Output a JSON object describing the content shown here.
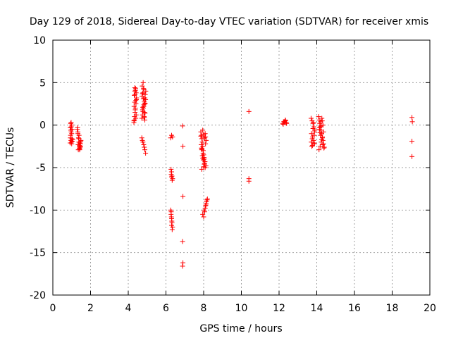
{
  "chart_data": {
    "type": "scatter",
    "title": "Day 129 of 2018, Sidereal Day-to-day VTEC variation (SDTVAR) for receiver xmis",
    "xlabel": "GPS time / hours",
    "ylabel": "SDTVAR / TECUs",
    "xlim": [
      0,
      20
    ],
    "ylim": [
      -20,
      10
    ],
    "xticks": [
      0,
      2,
      4,
      6,
      8,
      10,
      12,
      14,
      16,
      18,
      20
    ],
    "yticks": [
      -20,
      -15,
      -10,
      -5,
      0,
      5,
      10
    ],
    "grid": true,
    "marker": "+",
    "color": "#ff0000",
    "series": [
      {
        "name": "SDTVAR",
        "x": [
          0.92,
          0.95,
          0.97,
          1.0,
          1.02,
          0.93,
          0.96,
          0.99,
          1.01,
          0.94,
          0.98,
          1.03,
          0.92,
          0.97,
          1.0,
          1.05,
          0.95,
          1.0,
          1.3,
          1.33,
          1.36,
          1.38,
          1.41,
          1.43,
          1.46,
          1.49,
          1.31,
          1.35,
          1.39,
          1.42,
          1.45,
          1.48,
          1.34,
          1.4,
          1.44,
          1.38,
          1.47,
          1.33,
          1.42,
          4.3,
          4.33,
          4.36,
          4.38,
          4.41,
          4.43,
          4.32,
          4.35,
          4.39,
          4.42,
          4.31,
          4.37,
          4.4,
          4.44,
          4.3,
          4.34,
          4.38,
          4.42,
          4.33,
          4.36,
          4.4,
          4.35,
          4.72,
          4.75,
          4.78,
          4.8,
          4.83,
          4.85,
          4.88,
          4.9,
          4.93,
          4.74,
          4.79,
          4.84,
          4.89,
          4.76,
          4.82,
          4.87,
          4.92,
          4.73,
          4.78,
          4.83,
          4.88,
          4.77,
          4.86,
          4.8,
          4.85,
          4.9,
          4.75,
          4.81,
          4.72,
          4.75,
          4.78,
          4.82,
          4.85,
          4.88,
          4.92,
          6.25,
          6.3,
          6.35,
          6.27,
          6.3,
          6.32,
          6.35,
          6.28,
          6.33,
          6.3,
          6.25,
          6.27,
          6.3,
          6.32,
          6.35,
          6.28,
          6.3,
          6.33,
          6.29,
          6.31,
          6.88,
          6.9,
          6.9,
          6.88,
          6.9,
          6.88,
          7.85,
          7.88,
          7.9,
          7.93,
          7.95,
          7.98,
          8.0,
          8.03,
          8.05,
          8.08,
          8.1,
          8.13,
          7.87,
          7.92,
          7.97,
          8.02,
          8.07,
          8.12,
          7.9,
          7.95,
          8.0,
          8.05,
          8.1,
          7.88,
          7.93,
          7.98,
          8.03,
          8.08,
          7.85,
          7.9,
          7.95,
          8.0,
          7.95,
          8.0,
          8.05,
          8.08,
          8.1,
          8.13,
          8.15,
          8.18,
          8.2,
          8.02,
          8.12,
          10.4,
          10.4,
          10.4,
          12.2,
          12.25,
          12.3,
          12.35,
          12.4,
          12.22,
          12.28,
          12.33,
          12.38,
          13.7,
          13.75,
          13.8,
          13.85,
          13.9,
          13.72,
          13.78,
          13.83,
          13.88,
          13.74,
          13.8,
          13.86,
          13.71,
          13.77,
          13.82,
          13.88,
          13.76,
          13.84,
          14.1,
          14.13,
          14.16,
          14.2,
          14.23,
          14.26,
          14.3,
          14.33,
          14.36,
          14.4,
          14.12,
          14.18,
          14.24,
          14.3,
          14.36,
          14.15,
          14.21,
          14.27,
          14.33,
          14.14,
          14.2,
          14.26,
          14.32,
          14.38,
          14.17,
          14.23,
          14.29,
          19.05,
          19.07,
          19.05,
          19.05
        ],
        "y": [
          -0.3,
          0.2,
          -0.8,
          0.0,
          -0.5,
          -1.5,
          -1.8,
          -2.0,
          -1.6,
          -1.2,
          -0.2,
          -1.9,
          -2.1,
          0.3,
          -1.0,
          -1.7,
          -0.6,
          -2.2,
          -0.5,
          -1.0,
          -1.5,
          -2.0,
          -2.5,
          -2.8,
          -2.2,
          -1.8,
          -0.3,
          -2.9,
          -1.2,
          -2.4,
          -2.6,
          -1.9,
          -2.3,
          -2.7,
          -2.1,
          -1.6,
          -2.5,
          -0.8,
          -2.9,
          0.5,
          1.0,
          1.5,
          2.0,
          2.5,
          3.0,
          3.5,
          4.0,
          4.3,
          3.8,
          2.2,
          1.8,
          0.8,
          3.2,
          0.3,
          2.7,
          4.1,
          1.2,
          0.6,
          3.6,
          2.9,
          4.4,
          0.8,
          1.2,
          1.6,
          2.0,
          2.4,
          2.8,
          3.2,
          3.6,
          4.0,
          4.6,
          5.0,
          1.0,
          1.4,
          1.8,
          2.2,
          2.6,
          3.0,
          3.4,
          3.8,
          4.2,
          0.6,
          2.1,
          1.5,
          3.1,
          0.9,
          2.5,
          3.7,
          4.3,
          -1.5,
          -1.8,
          -2.0,
          -2.3,
          -2.6,
          -2.9,
          -3.3,
          -1.5,
          -1.2,
          -1.4,
          -5.2,
          -5.5,
          -6.0,
          -6.3,
          -5.8,
          -6.5,
          -6.1,
          -10.0,
          -10.5,
          -11.0,
          -11.5,
          -12.0,
          -10.2,
          -11.8,
          -12.3,
          -10.8,
          -11.3,
          -0.1,
          -2.5,
          -8.4,
          -13.7,
          -16.2,
          -16.6,
          -0.8,
          -1.2,
          -1.6,
          -2.0,
          -2.5,
          -3.0,
          -3.5,
          -4.0,
          -4.5,
          -1.0,
          -1.4,
          -1.8,
          -2.3,
          -2.8,
          -3.3,
          -3.8,
          -4.3,
          -4.8,
          -5.2,
          -0.6,
          -1.1,
          -1.5,
          -2.2,
          -2.7,
          -3.6,
          -4.1,
          -4.6,
          -5.0,
          -1.3,
          -2.9,
          -3.9,
          -4.9,
          -10.5,
          -10.8,
          -10.2,
          -9.8,
          -9.5,
          -9.2,
          -9.0,
          -8.8,
          -8.7,
          -10.0,
          -9.4,
          1.6,
          -6.3,
          -6.6,
          0.2,
          0.4,
          0.3,
          0.5,
          0.2,
          0.1,
          0.4,
          0.6,
          0.3,
          0.8,
          0.5,
          0.2,
          -0.2,
          -0.6,
          -1.0,
          -1.4,
          -1.8,
          -2.2,
          -2.5,
          -0.4,
          -1.2,
          -2.0,
          -2.4,
          0.3,
          -0.8,
          -1.6,
          -2.1,
          1.0,
          0.6,
          0.2,
          -0.2,
          -0.6,
          -1.0,
          -1.4,
          -1.8,
          -2.2,
          -2.6,
          -2.9,
          -2.5,
          -2.0,
          -1.5,
          -0.8,
          -0.3,
          0.4,
          0.8,
          0.0,
          -0.5,
          -1.2,
          -1.7,
          -2.3,
          -2.7,
          -0.9,
          -0.1,
          0.5,
          0.9,
          0.4,
          -1.9,
          -3.7
        ]
      }
    ]
  }
}
